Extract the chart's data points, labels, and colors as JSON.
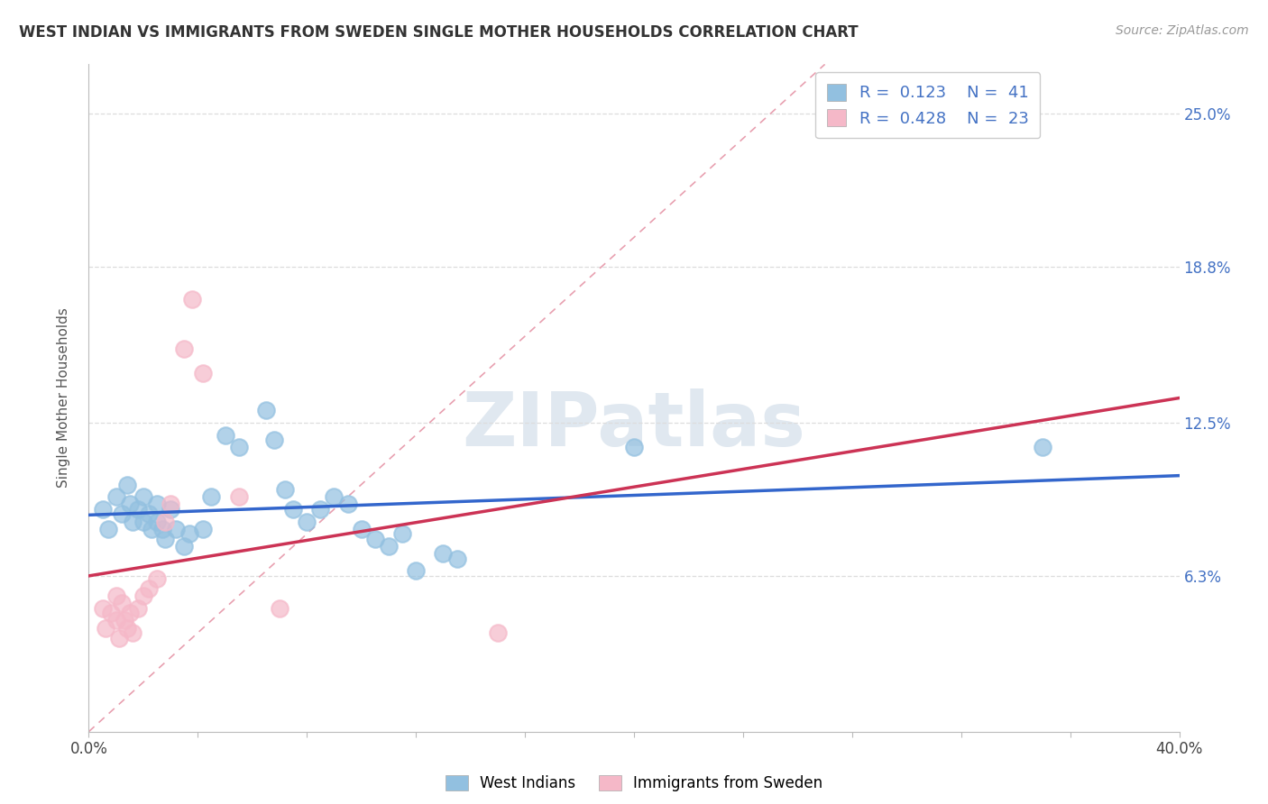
{
  "title": "WEST INDIAN VS IMMIGRANTS FROM SWEDEN SINGLE MOTHER HOUSEHOLDS CORRELATION CHART",
  "source": "Source: ZipAtlas.com",
  "ylabel": "Single Mother Households",
  "x_min": 0.0,
  "x_max": 0.4,
  "y_min": 0.0,
  "y_max": 0.27,
  "y_ticks": [
    0.063,
    0.125,
    0.188,
    0.25
  ],
  "y_tick_labels": [
    "6.3%",
    "12.5%",
    "18.8%",
    "25.0%"
  ],
  "blue_R": "0.123",
  "blue_N": "41",
  "pink_R": "0.428",
  "pink_N": "23",
  "blue_color": "#92c0e0",
  "pink_color": "#f5b8c8",
  "blue_line_color": "#3366cc",
  "pink_line_color": "#cc3355",
  "diag_line_color": "#e8a0b0",
  "blue_points": [
    [
      0.005,
      0.09
    ],
    [
      0.007,
      0.082
    ],
    [
      0.01,
      0.095
    ],
    [
      0.012,
      0.088
    ],
    [
      0.014,
      0.1
    ],
    [
      0.015,
      0.092
    ],
    [
      0.016,
      0.085
    ],
    [
      0.018,
      0.09
    ],
    [
      0.02,
      0.095
    ],
    [
      0.02,
      0.085
    ],
    [
      0.022,
      0.088
    ],
    [
      0.023,
      0.082
    ],
    [
      0.025,
      0.092
    ],
    [
      0.025,
      0.085
    ],
    [
      0.027,
      0.082
    ],
    [
      0.028,
      0.078
    ],
    [
      0.03,
      0.09
    ],
    [
      0.032,
      0.082
    ],
    [
      0.035,
      0.075
    ],
    [
      0.037,
      0.08
    ],
    [
      0.042,
      0.082
    ],
    [
      0.045,
      0.095
    ],
    [
      0.05,
      0.12
    ],
    [
      0.055,
      0.115
    ],
    [
      0.065,
      0.13
    ],
    [
      0.068,
      0.118
    ],
    [
      0.072,
      0.098
    ],
    [
      0.075,
      0.09
    ],
    [
      0.08,
      0.085
    ],
    [
      0.085,
      0.09
    ],
    [
      0.09,
      0.095
    ],
    [
      0.095,
      0.092
    ],
    [
      0.1,
      0.082
    ],
    [
      0.105,
      0.078
    ],
    [
      0.11,
      0.075
    ],
    [
      0.115,
      0.08
    ],
    [
      0.12,
      0.065
    ],
    [
      0.13,
      0.072
    ],
    [
      0.135,
      0.07
    ],
    [
      0.2,
      0.115
    ],
    [
      0.35,
      0.115
    ]
  ],
  "pink_points": [
    [
      0.005,
      0.05
    ],
    [
      0.006,
      0.042
    ],
    [
      0.008,
      0.048
    ],
    [
      0.01,
      0.055
    ],
    [
      0.01,
      0.045
    ],
    [
      0.011,
      0.038
    ],
    [
      0.012,
      0.052
    ],
    [
      0.013,
      0.045
    ],
    [
      0.014,
      0.042
    ],
    [
      0.015,
      0.048
    ],
    [
      0.016,
      0.04
    ],
    [
      0.018,
      0.05
    ],
    [
      0.02,
      0.055
    ],
    [
      0.022,
      0.058
    ],
    [
      0.025,
      0.062
    ],
    [
      0.028,
      0.085
    ],
    [
      0.03,
      0.092
    ],
    [
      0.035,
      0.155
    ],
    [
      0.038,
      0.175
    ],
    [
      0.042,
      0.145
    ],
    [
      0.055,
      0.095
    ],
    [
      0.07,
      0.05
    ],
    [
      0.15,
      0.04
    ]
  ]
}
